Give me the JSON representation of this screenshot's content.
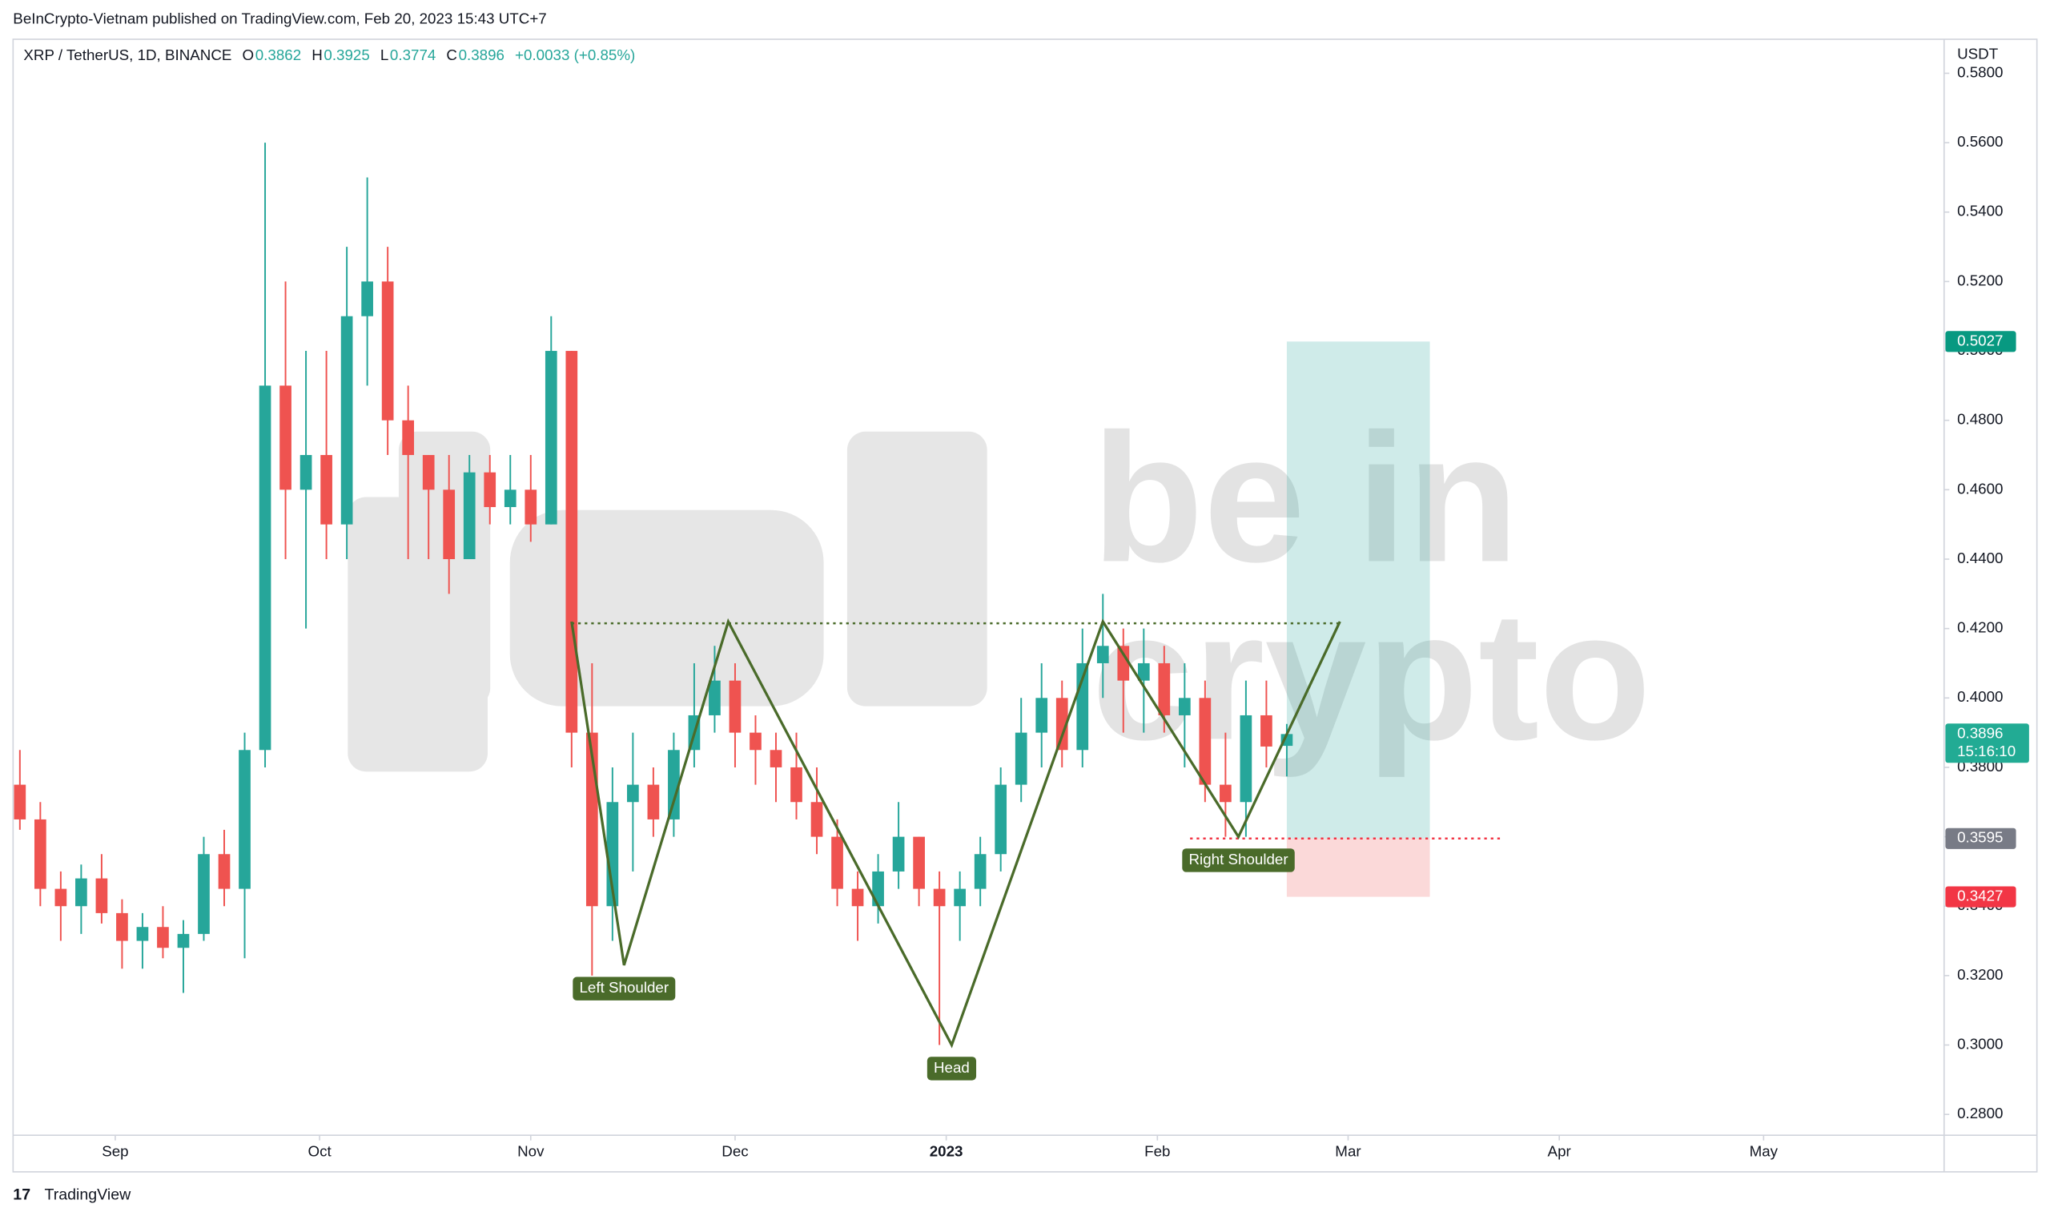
{
  "header": {
    "publisher": "BeInCrypto-Vietnam published on TradingView.com, Feb 20, 2023 15:43 UTC+7",
    "footer": "TradingView"
  },
  "chart_data": {
    "type": "candlestick",
    "title": "XRP / TetherUS, 1D, BINANCE",
    "ohlc_legend": [
      {
        "key": "O",
        "value": "0.3862"
      },
      {
        "key": "H",
        "value": "0.3925"
      },
      {
        "key": "L",
        "value": "0.3774"
      },
      {
        "key": "C",
        "value": "0.3896"
      }
    ],
    "change": "+0.0033 (+0.85%)",
    "y_axis_label": "USDT",
    "watermark": [
      "be in",
      "crypto"
    ],
    "up_color": "#26a69a",
    "down_color": "#ef5350",
    "x": [
      -14,
      -11,
      -8,
      -5,
      -2,
      1,
      4,
      7,
      10,
      13,
      16,
      19,
      22,
      25,
      28,
      31,
      34,
      37,
      40,
      43,
      46,
      49,
      52,
      55,
      58,
      61,
      64,
      67,
      70,
      73,
      76,
      79,
      82,
      85,
      88,
      91,
      94,
      97,
      100,
      103,
      106,
      109,
      112,
      115,
      118,
      121,
      124,
      127,
      130,
      133,
      136,
      139,
      142,
      145,
      148,
      151,
      154,
      157,
      160,
      163,
      166,
      169,
      172
    ],
    "open": [
      0.375,
      0.365,
      0.345,
      0.34,
      0.348,
      0.338,
      0.33,
      0.334,
      0.328,
      0.332,
      0.355,
      0.345,
      0.385,
      0.49,
      0.46,
      0.47,
      0.45,
      0.51,
      0.52,
      0.48,
      0.47,
      0.46,
      0.44,
      0.465,
      0.455,
      0.46,
      0.45,
      0.5,
      0.39,
      0.34,
      0.37,
      0.375,
      0.365,
      0.385,
      0.395,
      0.405,
      0.39,
      0.385,
      0.38,
      0.37,
      0.36,
      0.345,
      0.34,
      0.35,
      0.36,
      0.345,
      0.34,
      0.345,
      0.355,
      0.375,
      0.39,
      0.4,
      0.385,
      0.41,
      0.415,
      0.405,
      0.41,
      0.395,
      0.4,
      0.375,
      0.37,
      0.395,
      0.3862
    ],
    "high": [
      0.385,
      0.37,
      0.35,
      0.352,
      0.355,
      0.342,
      0.338,
      0.34,
      0.336,
      0.36,
      0.362,
      0.39,
      0.56,
      0.52,
      0.5,
      0.5,
      0.53,
      0.55,
      0.53,
      0.49,
      0.47,
      0.47,
      0.47,
      0.47,
      0.47,
      0.47,
      0.51,
      0.5,
      0.41,
      0.38,
      0.39,
      0.38,
      0.39,
      0.41,
      0.415,
      0.41,
      0.395,
      0.39,
      0.39,
      0.38,
      0.365,
      0.35,
      0.355,
      0.37,
      0.36,
      0.35,
      0.35,
      0.36,
      0.38,
      0.4,
      0.41,
      0.405,
      0.42,
      0.43,
      0.42,
      0.42,
      0.415,
      0.41,
      0.405,
      0.39,
      0.405,
      0.405,
      0.3925
    ],
    "low": [
      0.362,
      0.34,
      0.33,
      0.332,
      0.335,
      0.322,
      0.322,
      0.325,
      0.315,
      0.33,
      0.34,
      0.325,
      0.38,
      0.44,
      0.42,
      0.44,
      0.44,
      0.49,
      0.47,
      0.44,
      0.44,
      0.43,
      0.44,
      0.45,
      0.45,
      0.445,
      0.45,
      0.38,
      0.32,
      0.33,
      0.35,
      0.36,
      0.36,
      0.38,
      0.39,
      0.38,
      0.375,
      0.37,
      0.365,
      0.355,
      0.34,
      0.33,
      0.335,
      0.345,
      0.34,
      0.3,
      0.33,
      0.34,
      0.35,
      0.37,
      0.38,
      0.38,
      0.38,
      0.4,
      0.39,
      0.39,
      0.39,
      0.38,
      0.37,
      0.36,
      0.36,
      0.38,
      0.3774
    ],
    "close": [
      0.365,
      0.345,
      0.34,
      0.348,
      0.338,
      0.33,
      0.334,
      0.328,
      0.332,
      0.355,
      0.345,
      0.385,
      0.49,
      0.46,
      0.47,
      0.45,
      0.51,
      0.52,
      0.48,
      0.47,
      0.46,
      0.44,
      0.465,
      0.455,
      0.46,
      0.45,
      0.5,
      0.39,
      0.34,
      0.37,
      0.375,
      0.365,
      0.385,
      0.395,
      0.405,
      0.39,
      0.385,
      0.38,
      0.37,
      0.36,
      0.345,
      0.34,
      0.35,
      0.36,
      0.345,
      0.34,
      0.345,
      0.355,
      0.375,
      0.39,
      0.4,
      0.385,
      0.41,
      0.415,
      0.405,
      0.41,
      0.395,
      0.4,
      0.375,
      0.37,
      0.395,
      0.386,
      0.3896
    ],
    "xlim": [
      -15,
      268.5
    ],
    "xticks": [
      {
        "value": 0,
        "label": "Sep"
      },
      {
        "value": 30,
        "label": "Oct"
      },
      {
        "value": 61,
        "label": "Nov"
      },
      {
        "value": 91,
        "label": "Dec"
      },
      {
        "value": 122,
        "label": "2023"
      },
      {
        "value": 153,
        "label": "Feb"
      },
      {
        "value": 181,
        "label": "Mar"
      },
      {
        "value": 212,
        "label": "Apr"
      },
      {
        "value": 242,
        "label": "May"
      }
    ],
    "ylim": [
      0.274,
      0.5898
    ],
    "yticks": [
      {
        "value": 0.28,
        "label": "0.2800"
      },
      {
        "value": 0.3,
        "label": "0.3000"
      },
      {
        "value": 0.32,
        "label": "0.3200"
      },
      {
        "value": 0.34,
        "label": "0.3400"
      },
      {
        "value": 0.36,
        "label": "0.3600"
      },
      {
        "value": 0.38,
        "label": "0.3800"
      },
      {
        "value": 0.4,
        "label": "0.4000"
      },
      {
        "value": 0.42,
        "label": "0.4200"
      },
      {
        "value": 0.44,
        "label": "0.4400"
      },
      {
        "value": 0.46,
        "label": "0.4600"
      },
      {
        "value": 0.48,
        "label": "0.4800"
      },
      {
        "value": 0.5,
        "label": "0.5000"
      },
      {
        "value": 0.52,
        "label": "0.5200"
      },
      {
        "value": 0.54,
        "label": "0.5400"
      },
      {
        "value": 0.56,
        "label": "0.5600"
      },
      {
        "value": 0.58,
        "label": "0.5800"
      }
    ],
    "pattern": {
      "color": "#4a6b2a",
      "x": [
        67,
        74.7,
        90,
        122.8,
        145,
        164.9,
        179.8
      ],
      "y": [
        0.422,
        0.323,
        0.422,
        0.3,
        0.422,
        0.36,
        0.422
      ]
    },
    "neckline": {
      "x": [
        67,
        180
      ],
      "y": [
        0.4215,
        0.4215
      ]
    },
    "stop_line": {
      "x": [
        157.8,
        203.8
      ],
      "y": [
        0.3595,
        0.3595
      ]
    },
    "position": {
      "x": [
        172,
        193
      ],
      "entry": 0.3595,
      "target": 0.5027,
      "stop": 0.3427
    },
    "pattern_labels": [
      {
        "text": "Left Shoulder",
        "x": 74.7,
        "y": 0.3215
      },
      {
        "text": "Head",
        "x": 122.8,
        "y": 0.2985
      },
      {
        "text": "Right Shoulder",
        "x": 164.9,
        "y": 0.3585
      }
    ],
    "price_tags": [
      {
        "value": 0.5027,
        "color": "#089981"
      },
      {
        "value": 0.3896,
        "color": "#22ab94",
        "countdown": "15:16:10"
      },
      {
        "value": 0.3595,
        "color": "#787b86"
      },
      {
        "value": 0.3427,
        "color": "#f23645"
      }
    ]
  }
}
